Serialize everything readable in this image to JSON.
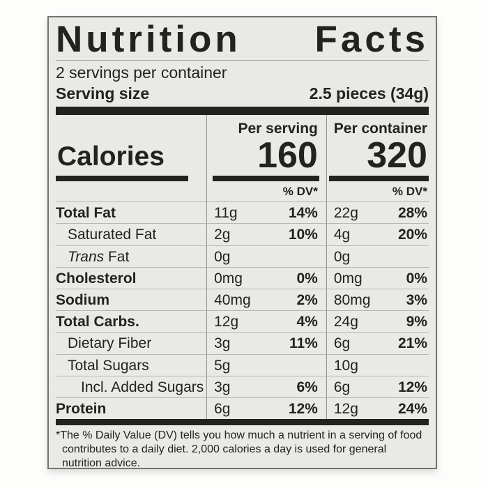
{
  "title_word_1": "Nutrition",
  "title_word_2": "Facts",
  "servings_per_container": "2 servings per container",
  "serving_size_label": "Serving size",
  "serving_size_value": "2.5 pieces (34g)",
  "calories_label": "Calories",
  "col_header_serving": "Per serving",
  "col_header_container": "Per container",
  "calories_per_serving": "160",
  "calories_per_container": "320",
  "dv_header": "% DV*",
  "rows": [
    {
      "name": "Total Fat",
      "s_amount": "11g",
      "s_dv": "14%",
      "c_amount": "22g",
      "c_dv": "28%"
    },
    {
      "name": "Saturated Fat",
      "s_amount": "2g",
      "s_dv": "10%",
      "c_amount": "4g",
      "c_dv": "20%"
    },
    {
      "name_italic": "Trans",
      "name": " Fat",
      "s_amount": "0g",
      "s_dv": "",
      "c_amount": "0g",
      "c_dv": ""
    },
    {
      "name": "Cholesterol",
      "s_amount": "0mg",
      "s_dv": "0%",
      "c_amount": "0mg",
      "c_dv": "0%"
    },
    {
      "name": "Sodium",
      "s_amount": "40mg",
      "s_dv": "2%",
      "c_amount": "80mg",
      "c_dv": "3%"
    },
    {
      "name": "Total Carbs.",
      "s_amount": "12g",
      "s_dv": "4%",
      "c_amount": "24g",
      "c_dv": "9%"
    },
    {
      "name": "Dietary Fiber",
      "s_amount": "3g",
      "s_dv": "11%",
      "c_amount": "6g",
      "c_dv": "21%"
    },
    {
      "name": "Total Sugars",
      "s_amount": "5g",
      "s_dv": "",
      "c_amount": "10g",
      "c_dv": ""
    },
    {
      "name": "Incl. Added Sugars",
      "s_amount": "3g",
      "s_dv": "6%",
      "c_amount": "6g",
      "c_dv": "12%"
    },
    {
      "name": "Protein",
      "s_amount": "6g",
      "s_dv": "12%",
      "c_amount": "12g",
      "c_dv": "24%"
    }
  ],
  "footnote_star": "*",
  "footnote_text": "The % Daily Value (DV) tells you how much a nutrient in a serving of food contributes to a daily diet. 2,000 calories a day is used for general nutrition advice.",
  "colors": {
    "label_background": "#e9e9e5",
    "text": "#222220",
    "bar": "#22221f",
    "page_background": "#fdfdfc"
  }
}
